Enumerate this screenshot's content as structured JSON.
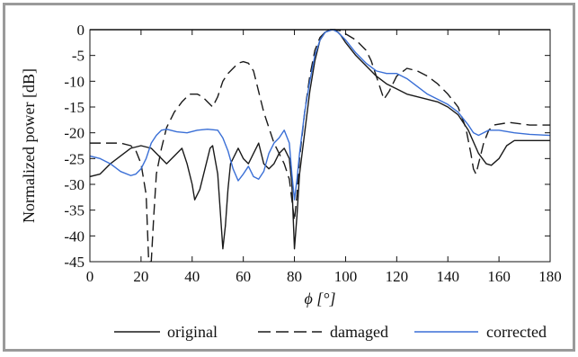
{
  "chart_data": {
    "type": "line",
    "xlabel": "ϕ [°]",
    "ylabel": "Normalized power [dB]",
    "xlim": [
      0,
      180
    ],
    "ylim": [
      -45,
      0
    ],
    "xticks": [
      0,
      20,
      40,
      60,
      80,
      100,
      120,
      140,
      160,
      180
    ],
    "yticks": [
      0,
      -5,
      -10,
      -15,
      -20,
      -25,
      -30,
      -35,
      -40,
      -45
    ],
    "grid": false,
    "legend_position": "bottom",
    "series": [
      {
        "name": "original",
        "style": "solid",
        "color": "#1a1a1a",
        "points": [
          [
            0,
            -28.5
          ],
          [
            4,
            -28
          ],
          [
            8,
            -26
          ],
          [
            12,
            -24.5
          ],
          [
            16,
            -23
          ],
          [
            20,
            -22.5
          ],
          [
            24,
            -23
          ],
          [
            27,
            -24.5
          ],
          [
            30,
            -26
          ],
          [
            33,
            -24.5
          ],
          [
            36,
            -23
          ],
          [
            38,
            -26
          ],
          [
            40,
            -30
          ],
          [
            41,
            -33
          ],
          [
            43,
            -31
          ],
          [
            45,
            -27
          ],
          [
            47,
            -23
          ],
          [
            48,
            -22.5
          ],
          [
            50,
            -28
          ],
          [
            52,
            -42.5
          ],
          [
            53,
            -38
          ],
          [
            54,
            -31
          ],
          [
            55,
            -26
          ],
          [
            57,
            -24
          ],
          [
            58,
            -23
          ],
          [
            60,
            -25
          ],
          [
            62,
            -26
          ],
          [
            64,
            -24
          ],
          [
            66,
            -22
          ],
          [
            68,
            -26
          ],
          [
            70,
            -27
          ],
          [
            72,
            -26
          ],
          [
            74,
            -24
          ],
          [
            76,
            -23
          ],
          [
            78,
            -25
          ],
          [
            79,
            -30
          ],
          [
            80,
            -42.5
          ],
          [
            81,
            -36
          ],
          [
            82,
            -28
          ],
          [
            84,
            -20
          ],
          [
            86,
            -12
          ],
          [
            88,
            -6
          ],
          [
            90,
            -2
          ],
          [
            92,
            -0.5
          ],
          [
            94,
            0
          ],
          [
            96,
            0
          ],
          [
            98,
            -1
          ],
          [
            100,
            -2.5
          ],
          [
            104,
            -5
          ],
          [
            108,
            -7
          ],
          [
            112,
            -9
          ],
          [
            116,
            -10.5
          ],
          [
            120,
            -11.5
          ],
          [
            124,
            -12.5
          ],
          [
            128,
            -13
          ],
          [
            132,
            -13.5
          ],
          [
            136,
            -14
          ],
          [
            140,
            -15
          ],
          [
            144,
            -16.5
          ],
          [
            148,
            -19.5
          ],
          [
            152,
            -24
          ],
          [
            155,
            -26
          ],
          [
            157,
            -26.3
          ],
          [
            160,
            -25
          ],
          [
            163,
            -22.5
          ],
          [
            166,
            -21.5
          ],
          [
            172,
            -21.5
          ],
          [
            180,
            -21.5
          ]
        ]
      },
      {
        "name": "damaged",
        "style": "dashed",
        "color": "#1a1a1a",
        "points": [
          [
            0,
            -22
          ],
          [
            6,
            -22
          ],
          [
            12,
            -22
          ],
          [
            16,
            -22.5
          ],
          [
            18,
            -23.5
          ],
          [
            20,
            -26
          ],
          [
            22,
            -32
          ],
          [
            23,
            -45
          ],
          [
            24,
            -45
          ],
          [
            25,
            -36
          ],
          [
            26,
            -28
          ],
          [
            28,
            -23
          ],
          [
            30,
            -19
          ],
          [
            33,
            -16
          ],
          [
            36,
            -14
          ],
          [
            39,
            -12.5
          ],
          [
            42,
            -12.5
          ],
          [
            44,
            -13
          ],
          [
            46,
            -14
          ],
          [
            48,
            -15
          ],
          [
            50,
            -13
          ],
          [
            52,
            -10
          ],
          [
            54,
            -8.5
          ],
          [
            56,
            -7.5
          ],
          [
            58,
            -6.5
          ],
          [
            60,
            -6.2
          ],
          [
            62,
            -6.5
          ],
          [
            64,
            -8
          ],
          [
            66,
            -12
          ],
          [
            68,
            -16
          ],
          [
            70,
            -19
          ],
          [
            72,
            -22
          ],
          [
            74,
            -24
          ],
          [
            76,
            -26
          ],
          [
            78,
            -29
          ],
          [
            79,
            -33
          ],
          [
            80,
            -37
          ],
          [
            81,
            -32
          ],
          [
            82,
            -25
          ],
          [
            84,
            -16
          ],
          [
            86,
            -9
          ],
          [
            88,
            -4
          ],
          [
            90,
            -1.5
          ],
          [
            92,
            -0.5
          ],
          [
            94,
            0
          ],
          [
            96,
            0
          ],
          [
            98,
            -0.2
          ],
          [
            100,
            -0.8
          ],
          [
            104,
            -2
          ],
          [
            108,
            -4
          ],
          [
            110,
            -6
          ],
          [
            112,
            -9
          ],
          [
            114,
            -12
          ],
          [
            115,
            -13.5
          ],
          [
            117,
            -12
          ],
          [
            120,
            -9
          ],
          [
            124,
            -7.5
          ],
          [
            128,
            -8
          ],
          [
            132,
            -9
          ],
          [
            136,
            -10.5
          ],
          [
            140,
            -12.5
          ],
          [
            144,
            -15
          ],
          [
            147,
            -19
          ],
          [
            149,
            -24
          ],
          [
            150,
            -27
          ],
          [
            151,
            -28
          ],
          [
            152,
            -26
          ],
          [
            154,
            -22
          ],
          [
            156,
            -19.5
          ],
          [
            158,
            -18.5
          ],
          [
            164,
            -18
          ],
          [
            172,
            -18.5
          ],
          [
            180,
            -18.5
          ]
        ]
      },
      {
        "name": "corrected",
        "style": "solid",
        "color": "#3a6fd6",
        "points": [
          [
            0,
            -24.5
          ],
          [
            4,
            -25
          ],
          [
            8,
            -26
          ],
          [
            12,
            -27.5
          ],
          [
            16,
            -28.3
          ],
          [
            18,
            -28
          ],
          [
            20,
            -27
          ],
          [
            22,
            -25
          ],
          [
            24,
            -22
          ],
          [
            26,
            -20.5
          ],
          [
            28,
            -19.5
          ],
          [
            30,
            -19.3
          ],
          [
            34,
            -19.8
          ],
          [
            38,
            -20
          ],
          [
            42,
            -19.5
          ],
          [
            46,
            -19.3
          ],
          [
            50,
            -19.5
          ],
          [
            52,
            -21
          ],
          [
            54,
            -23.5
          ],
          [
            56,
            -27
          ],
          [
            58,
            -29.3
          ],
          [
            60,
            -28
          ],
          [
            62,
            -26.5
          ],
          [
            64,
            -28.5
          ],
          [
            66,
            -29
          ],
          [
            68,
            -27.5
          ],
          [
            70,
            -24
          ],
          [
            72,
            -22
          ],
          [
            74,
            -21
          ],
          [
            76,
            -19.5
          ],
          [
            78,
            -22
          ],
          [
            79,
            -28
          ],
          [
            80,
            -33
          ],
          [
            81,
            -29
          ],
          [
            82,
            -24
          ],
          [
            84,
            -16
          ],
          [
            86,
            -10
          ],
          [
            88,
            -5
          ],
          [
            90,
            -2
          ],
          [
            92,
            -0.5
          ],
          [
            95,
            0
          ],
          [
            97,
            -0.5
          ],
          [
            100,
            -2
          ],
          [
            104,
            -4.5
          ],
          [
            108,
            -6.5
          ],
          [
            112,
            -8
          ],
          [
            116,
            -8.5
          ],
          [
            120,
            -8.5
          ],
          [
            124,
            -9.5
          ],
          [
            128,
            -11
          ],
          [
            132,
            -12.5
          ],
          [
            136,
            -13.5
          ],
          [
            140,
            -14.5
          ],
          [
            144,
            -16
          ],
          [
            148,
            -18.5
          ],
          [
            150,
            -20
          ],
          [
            152,
            -20.5
          ],
          [
            154,
            -20
          ],
          [
            156,
            -19.5
          ],
          [
            160,
            -19.5
          ],
          [
            166,
            -20
          ],
          [
            172,
            -20.3
          ],
          [
            180,
            -20.5
          ]
        ]
      }
    ]
  }
}
